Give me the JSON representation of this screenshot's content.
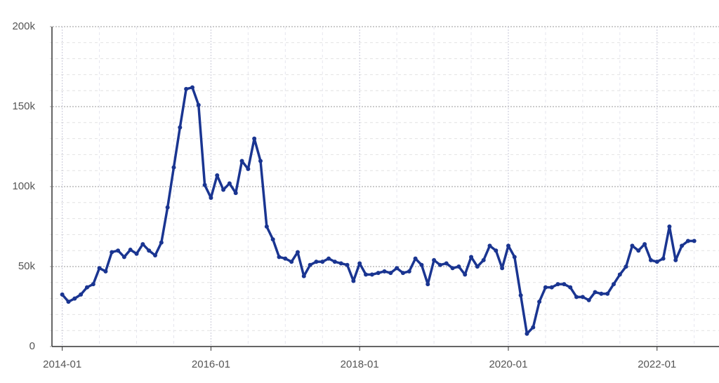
{
  "chart_data": {
    "type": "line",
    "x": [
      "2014-01",
      "2014-02",
      "2014-03",
      "2014-04",
      "2014-05",
      "2014-06",
      "2014-07",
      "2014-08",
      "2014-09",
      "2014-10",
      "2014-11",
      "2014-12",
      "2015-01",
      "2015-02",
      "2015-03",
      "2015-04",
      "2015-05",
      "2015-06",
      "2015-07",
      "2015-08",
      "2015-09",
      "2015-10",
      "2015-11",
      "2015-12",
      "2016-01",
      "2016-02",
      "2016-03",
      "2016-04",
      "2016-05",
      "2016-06",
      "2016-07",
      "2016-08",
      "2016-09",
      "2016-10",
      "2016-11",
      "2016-12",
      "2017-01",
      "2017-02",
      "2017-03",
      "2017-04",
      "2017-05",
      "2017-06",
      "2017-07",
      "2017-08",
      "2017-09",
      "2017-10",
      "2017-11",
      "2017-12",
      "2018-01",
      "2018-02",
      "2018-03",
      "2018-04",
      "2018-05",
      "2018-06",
      "2018-07",
      "2018-08",
      "2018-09",
      "2018-10",
      "2018-11",
      "2018-12",
      "2019-01",
      "2019-02",
      "2019-03",
      "2019-04",
      "2019-05",
      "2019-06",
      "2019-07",
      "2019-08",
      "2019-09",
      "2019-10",
      "2019-11",
      "2019-12",
      "2020-01",
      "2020-02",
      "2020-03",
      "2020-04",
      "2020-05",
      "2020-06",
      "2020-07",
      "2020-08",
      "2020-09",
      "2020-10",
      "2020-11",
      "2020-12",
      "2021-01",
      "2021-02",
      "2021-03",
      "2021-04",
      "2021-05",
      "2021-06",
      "2021-07",
      "2021-08",
      "2021-09",
      "2021-10",
      "2021-11",
      "2021-12",
      "2022-01",
      "2022-02",
      "2022-03",
      "2022-04",
      "2022-05",
      "2022-06",
      "2022-07"
    ],
    "series": [
      {
        "color": "#1a3591",
        "values": [
          32500,
          28000,
          30000,
          32500,
          37000,
          39000,
          49000,
          47000,
          59000,
          60000,
          56000,
          60500,
          58000,
          64000,
          60000,
          57000,
          65000,
          87000,
          112000,
          137000,
          161000,
          162000,
          151000,
          101000,
          93000,
          107000,
          98000,
          102000,
          96000,
          116000,
          111000,
          130000,
          116000,
          75000,
          67000,
          56000,
          55000,
          53000,
          59000,
          44000,
          51000,
          53000,
          53000,
          55000,
          53000,
          52000,
          51000,
          41000,
          52000,
          45000,
          45000,
          46000,
          47000,
          46000,
          49000,
          46000,
          47000,
          55000,
          51000,
          39000,
          54000,
          51000,
          52000,
          49000,
          50000,
          45000,
          56000,
          50000,
          54000,
          63000,
          60000,
          49000,
          63000,
          56000,
          32000,
          8000,
          12000,
          28000,
          37000,
          37000,
          39000,
          39000,
          37000,
          31000,
          31000,
          29000,
          34000,
          33000,
          33000,
          39000,
          45000,
          50000,
          63000,
          60000,
          64000,
          54000,
          53000,
          55000,
          75000,
          54000,
          63000,
          66000,
          66000
        ]
      }
    ],
    "xlim": [
      "2013-11",
      "2022-11"
    ],
    "xticks": [
      "2014-01",
      "2016-01",
      "2018-01",
      "2020-01",
      "2022-01"
    ],
    "xminorticks": [
      "2014-07",
      "2015-01",
      "2015-07",
      "2016-07",
      "2017-01",
      "2017-07",
      "2018-07",
      "2019-01",
      "2019-07",
      "2020-07",
      "2021-01",
      "2021-07",
      "2022-07"
    ],
    "ylim": [
      0,
      200000
    ],
    "yticks": [
      0,
      {
        "value": 50000,
        "label": "50k"
      },
      {
        "value": 100000,
        "label": "100k"
      },
      {
        "value": 150000,
        "label": "150k"
      },
      {
        "value": 200000,
        "label": "200k"
      }
    ],
    "yminorticks": [
      10000,
      20000,
      30000,
      40000,
      60000,
      70000,
      80000,
      90000,
      110000,
      120000,
      130000,
      140000,
      160000,
      170000,
      180000,
      190000
    ],
    "grid": true
  }
}
